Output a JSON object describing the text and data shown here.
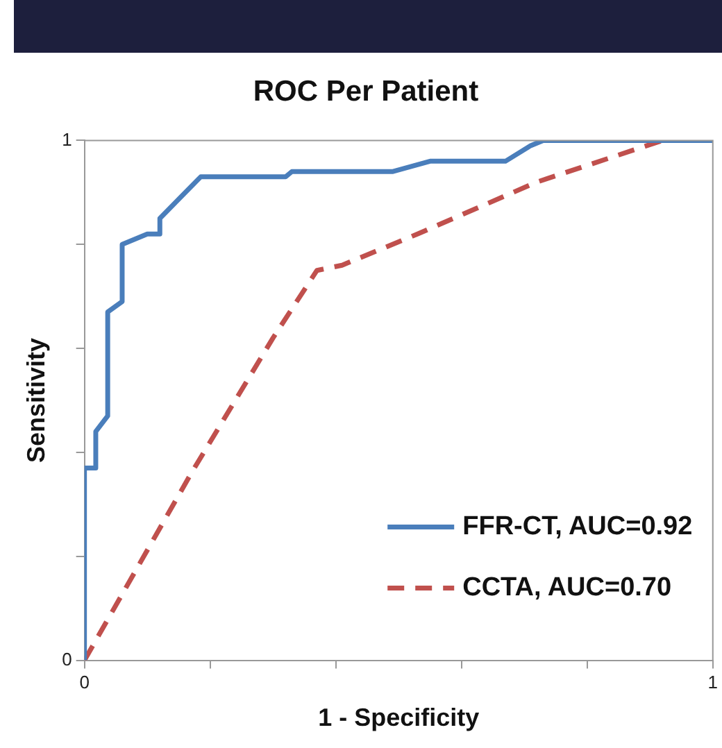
{
  "chart_data": {
    "type": "line",
    "title": "ROC Per Patient",
    "xlabel": "1 - Specificity",
    "ylabel": "Sensitivity",
    "xlim": [
      0,
      1
    ],
    "ylim": [
      0,
      1
    ],
    "xticks": [
      0,
      {
        "value": 0.2,
        "label": null
      },
      {
        "value": 0.4,
        "label": null
      },
      {
        "value": 0.6,
        "label": null
      },
      {
        "value": 0.8,
        "label": null
      },
      1
    ],
    "yticks": [
      0,
      {
        "value": 0.2,
        "label": null
      },
      {
        "value": 0.4,
        "label": null
      },
      {
        "value": 0.6,
        "label": null
      },
      {
        "value": 0.8,
        "label": null
      },
      1
    ],
    "grid": false,
    "legend": "bottom right",
    "marker": "none",
    "series": [
      {
        "name": "FFR-CT, AUC=0.92",
        "color": "#4a7ebb",
        "line_style": "solid",
        "x": [
          0,
          0,
          0.018,
          0.018,
          0.037,
          0.037,
          0.06,
          0.06,
          0.1,
          0.12,
          0.12,
          0.185,
          0.32,
          0.33,
          0.49,
          0.55,
          0.67,
          0.71,
          0.73,
          1
        ],
        "values": [
          0,
          0.37,
          0.37,
          0.44,
          0.47,
          0.67,
          0.69,
          0.8,
          0.82,
          0.82,
          0.85,
          0.93,
          0.93,
          0.94,
          0.94,
          0.96,
          0.96,
          0.99,
          1,
          1
        ]
      },
      {
        "name": "CCTA, AUC=0.70",
        "color": "#c0504d",
        "line_style": "dashed",
        "x": [
          0,
          0.17,
          0.3,
          0.37,
          0.41,
          0.53,
          0.72,
          0.92,
          1
        ],
        "values": [
          0,
          0.36,
          0.62,
          0.75,
          0.76,
          0.82,
          0.92,
          1,
          1
        ]
      }
    ]
  }
}
